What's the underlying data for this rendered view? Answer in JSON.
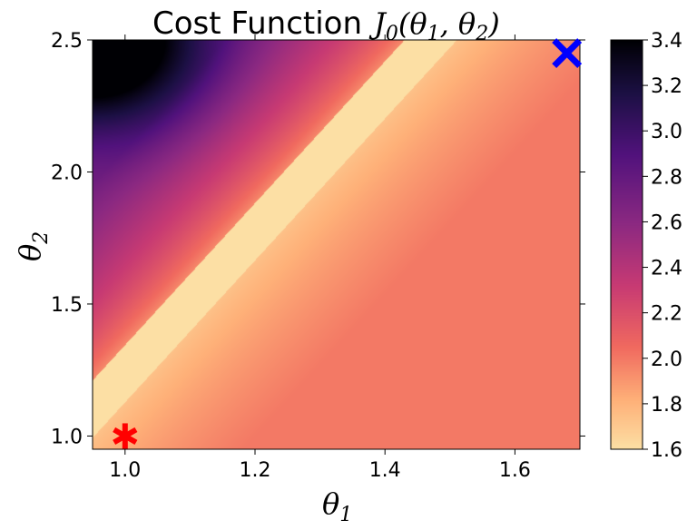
{
  "chart_data": {
    "type": "heatmap",
    "title_prefix": "Cost Function",
    "title_math": {
      "base": "J",
      "sub": "0",
      "args": "(θ",
      "sub1": "1",
      "mid": ", θ",
      "sub2": "2",
      "end": ")"
    },
    "xlabel": {
      "base": "θ",
      "sub": "1"
    },
    "ylabel": {
      "base": "θ",
      "sub": "2"
    },
    "xlim": [
      0.95,
      1.7
    ],
    "ylim": [
      0.95,
      2.5
    ],
    "xticks": [
      1.0,
      1.2,
      1.4,
      1.6
    ],
    "xtick_labels": [
      "1.0",
      "1.2",
      "1.4",
      "1.6"
    ],
    "yticks": [
      1.0,
      1.5,
      2.0,
      2.5
    ],
    "ytick_labels": [
      "1.0",
      "1.5",
      "2.0",
      "2.5"
    ],
    "colormap": "magma_r",
    "vmin": 1.6,
    "vmax": 3.4,
    "colorbar_ticks": [
      1.6,
      1.8,
      2.0,
      2.2,
      2.4,
      2.6,
      2.8,
      3.0,
      3.2,
      3.4
    ],
    "colorbar_tick_labels": [
      "1.6",
      "1.8",
      "2.0",
      "2.2",
      "2.4",
      "2.6",
      "2.8",
      "3.0",
      "3.2",
      "3.4"
    ],
    "grid": false,
    "markers": [
      {
        "symbol": "asterisk",
        "x": 1.0,
        "y": 1.0,
        "color": "#ff0000"
      },
      {
        "symbol": "x",
        "x": 1.68,
        "y": 2.45,
        "color": "#0000ff"
      }
    ],
    "minimum_valley": {
      "slope": 1.45,
      "through_x": 1.0,
      "through_y": 1.0,
      "min_value": 1.6
    }
  }
}
